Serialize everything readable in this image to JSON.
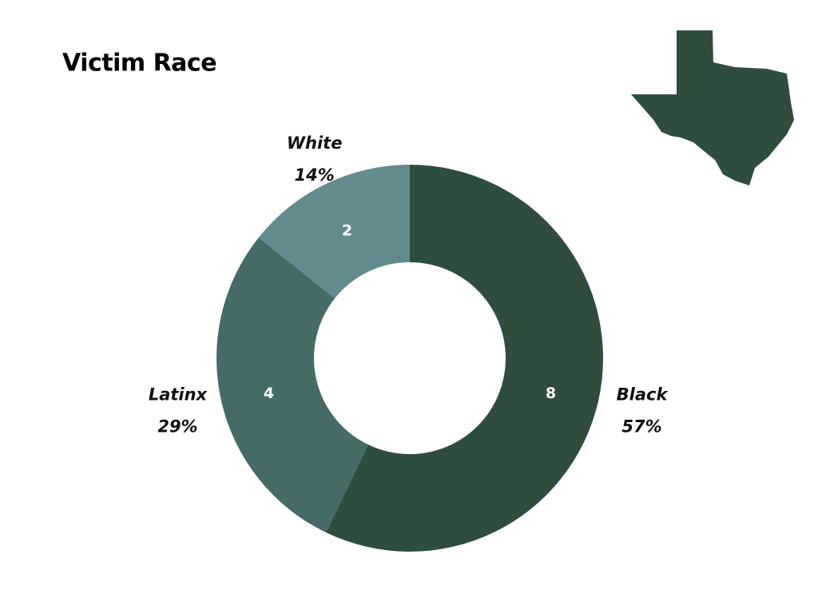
{
  "chart_data": {
    "type": "donut",
    "title": "Victim Race",
    "categories": [
      "Black",
      "Latinx",
      "White"
    ],
    "values": [
      8,
      4,
      2
    ],
    "percent_labels": [
      "57%",
      "29%",
      "14%"
    ],
    "colors": [
      "#2f4d3d",
      "#466b66",
      "#638b8d"
    ]
  }
}
